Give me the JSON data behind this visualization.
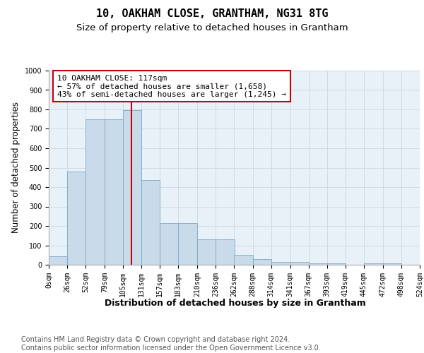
{
  "title": "10, OAKHAM CLOSE, GRANTHAM, NG31 8TG",
  "subtitle": "Size of property relative to detached houses in Grantham",
  "xlabel": "Distribution of detached houses by size in Grantham",
  "ylabel": "Number of detached properties",
  "bin_edges": [
    0,
    26,
    52,
    79,
    105,
    131,
    157,
    183,
    210,
    236,
    262,
    288,
    314,
    341,
    367,
    393,
    419,
    445,
    472,
    498,
    524
  ],
  "bar_heights": [
    42,
    480,
    750,
    750,
    795,
    435,
    215,
    215,
    130,
    130,
    52,
    28,
    15,
    15,
    7,
    7,
    0,
    7,
    7,
    0
  ],
  "bar_color": "#c9daea",
  "bar_edge_color": "#7aaac8",
  "grid_color": "#ccd8e4",
  "plot_bg_color": "#e8f0f8",
  "property_size": 117,
  "red_line_color": "#cc0000",
  "annotation_line1": "10 OAKHAM CLOSE: 117sqm",
  "annotation_line2": "← 57% of detached houses are smaller (1,658)",
  "annotation_line3": "43% of semi-detached houses are larger (1,245) →",
  "annotation_box_facecolor": "#ffffff",
  "annotation_box_edgecolor": "#cc0000",
  "ylim": [
    0,
    1000
  ],
  "yticks": [
    0,
    100,
    200,
    300,
    400,
    500,
    600,
    700,
    800,
    900,
    1000
  ],
  "footer_line1": "Contains HM Land Registry data © Crown copyright and database right 2024.",
  "footer_line2": "Contains public sector information licensed under the Open Government Licence v3.0.",
  "title_fontsize": 11,
  "subtitle_fontsize": 9.5,
  "ylabel_fontsize": 8.5,
  "xlabel_fontsize": 9,
  "tick_fontsize": 7,
  "annotation_fontsize": 8,
  "footer_fontsize": 7
}
